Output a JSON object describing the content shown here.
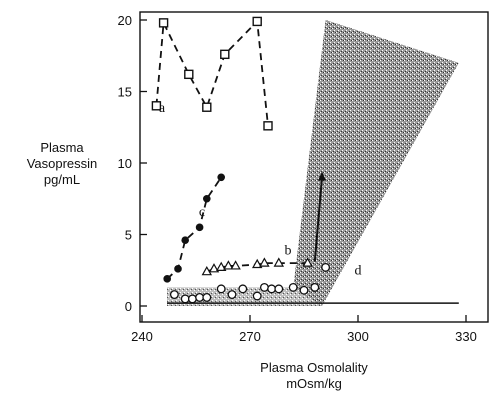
{
  "chart_data": {
    "type": "line",
    "title": "",
    "xlabel": "Plasma Osmolality",
    "xlabel_units": "mOsm/kg",
    "ylabel_lines": [
      "Plasma",
      "Vasopressin",
      "pg/mL"
    ],
    "xlim": [
      240,
      330
    ],
    "ylim": [
      0,
      20
    ],
    "x_ticks": [
      240,
      270,
      300,
      330
    ],
    "x_tick_labels": [
      "240",
      "270",
      "300",
      "330"
    ],
    "y_ticks": [
      0,
      5,
      10,
      15,
      20
    ],
    "y_tick_labels": [
      "0",
      "5",
      "10",
      "15",
      "20"
    ],
    "grid": false,
    "normal_range": {
      "threshold_osmolality": 290,
      "basal_band": [
        0,
        1.3
      ],
      "wedge_top": [
        [
          291,
          20
        ],
        [
          328,
          17
        ]
      ],
      "baseline": 0.2
    },
    "series": [
      {
        "label": "a",
        "marker": "open-square",
        "line": "dashed",
        "points": [
          [
            244,
            14
          ],
          [
            246,
            19.8
          ],
          [
            253,
            16.2
          ],
          [
            258,
            13.9
          ],
          [
            263,
            17.6
          ],
          [
            272,
            19.9
          ],
          [
            275,
            12.6
          ]
        ]
      },
      {
        "label": "b",
        "marker": "open-triangle",
        "line": "dashed",
        "points": [
          [
            258,
            2.4
          ],
          [
            260,
            2.6
          ],
          [
            262,
            2.7
          ],
          [
            264,
            2.8
          ],
          [
            266,
            2.8
          ],
          [
            272,
            2.9
          ],
          [
            274,
            3.0
          ],
          [
            278,
            3.0
          ],
          [
            286,
            3.0
          ]
        ]
      },
      {
        "label": "c",
        "marker": "filled-circle",
        "line": "dashed",
        "points": [
          [
            247,
            1.9
          ],
          [
            250,
            2.6
          ],
          [
            252,
            4.6
          ],
          [
            256,
            5.5
          ],
          [
            258,
            7.5
          ],
          [
            262,
            9.0
          ]
        ]
      },
      {
        "label": "d",
        "marker": "open-circle",
        "line": "none",
        "points": [
          [
            249,
            0.8
          ],
          [
            252,
            0.5
          ],
          [
            254,
            0.5
          ],
          [
            256,
            0.6
          ],
          [
            258,
            0.6
          ],
          [
            262,
            1.2
          ],
          [
            265,
            0.8
          ],
          [
            268,
            1.2
          ],
          [
            272,
            0.7
          ],
          [
            274,
            1.3
          ],
          [
            276,
            1.2
          ],
          [
            278,
            1.2
          ],
          [
            282,
            1.3
          ],
          [
            285,
            1.1
          ],
          [
            288,
            1.3
          ],
          [
            291,
            2.7
          ]
        ],
        "arrow": [
          [
            288,
            3.1
          ],
          [
            290,
            9.4
          ]
        ]
      }
    ]
  }
}
